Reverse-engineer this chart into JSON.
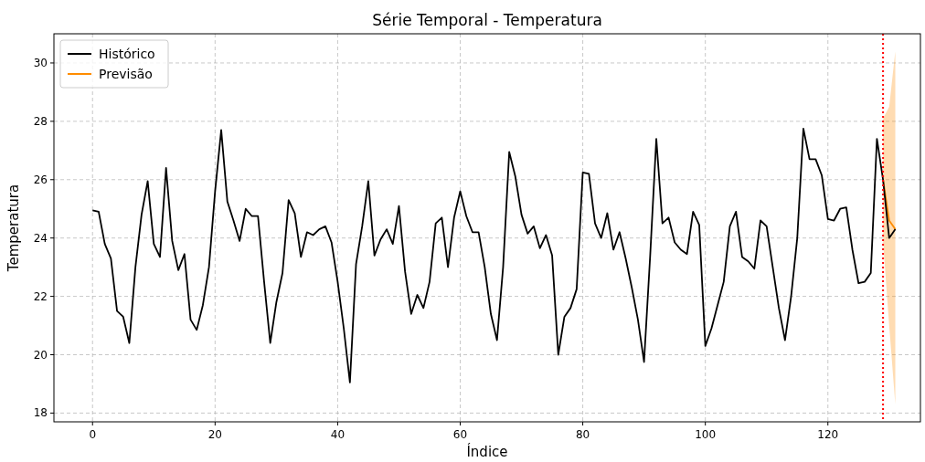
{
  "chart_data": {
    "type": "line",
    "title": "Série Temporal - Temperatura",
    "xlabel": "Índice",
    "ylabel": "Temperatura",
    "xlim": [
      -6.3,
      135.1
    ],
    "xticks": [
      0,
      20,
      40,
      60,
      80,
      100,
      120
    ],
    "ylim": [
      17.7,
      31.0
    ],
    "yticks": [
      18,
      20,
      22,
      24,
      26,
      28,
      30
    ],
    "grid": true,
    "legend": "top left",
    "series": [
      {
        "name": "Histórico",
        "color": "#000000",
        "x": [
          0,
          1,
          2,
          3,
          4,
          5,
          6,
          7,
          8,
          9,
          10,
          11,
          12,
          13,
          14,
          15,
          16,
          17,
          18,
          19,
          20,
          21,
          22,
          23,
          24,
          25,
          26,
          27,
          28,
          29,
          30,
          31,
          32,
          33,
          34,
          35,
          36,
          37,
          38,
          39,
          40,
          41,
          42,
          43,
          44,
          45,
          46,
          47,
          48,
          49,
          50,
          51,
          52,
          53,
          54,
          55,
          56,
          57,
          58,
          59,
          60,
          61,
          62,
          63,
          64,
          65,
          66,
          67,
          68,
          69,
          70,
          71,
          72,
          73,
          74,
          75,
          76,
          77,
          78,
          79,
          80,
          81,
          82,
          83,
          84,
          85,
          86,
          87,
          88,
          89,
          90,
          91,
          92,
          93,
          94,
          95,
          96,
          97,
          98,
          99,
          100,
          101,
          102,
          103,
          104,
          105,
          106,
          107,
          108,
          109,
          110,
          111,
          112,
          113,
          114,
          115,
          116,
          117,
          118,
          119,
          120,
          121,
          122,
          123,
          124,
          125,
          126,
          127,
          128,
          129,
          130,
          131
        ],
        "values": [
          24.95,
          24.9,
          23.8,
          23.3,
          21.5,
          21.3,
          20.4,
          23.0,
          24.8,
          25.95,
          23.8,
          23.35,
          26.4,
          23.9,
          22.9,
          23.45,
          21.2,
          20.85,
          21.7,
          23.0,
          25.6,
          27.7,
          25.25,
          24.6,
          23.9,
          25.0,
          24.75,
          24.75,
          22.5,
          20.4,
          21.8,
          22.8,
          25.3,
          24.85,
          23.35,
          24.2,
          24.1,
          24.3,
          24.4,
          23.85,
          22.5,
          20.9,
          19.05,
          23.1,
          24.4,
          25.95,
          23.4,
          23.95,
          24.3,
          23.8,
          25.1,
          22.85,
          21.4,
          22.05,
          21.6,
          22.5,
          24.5,
          24.7,
          23.0,
          24.7,
          25.6,
          24.75,
          24.2,
          24.2,
          23.0,
          21.4,
          20.5,
          23.0,
          26.95,
          26.1,
          24.8,
          24.15,
          24.4,
          23.65,
          24.1,
          23.4,
          20.0,
          21.3,
          21.6,
          22.25,
          26.25,
          26.2,
          24.5,
          24.0,
          24.85,
          23.6,
          24.2,
          23.3,
          22.3,
          21.2,
          19.75,
          23.4,
          27.4,
          24.5,
          24.7,
          23.85,
          23.6,
          23.45,
          24.9,
          24.45,
          20.3,
          20.9,
          21.7,
          22.5,
          24.4,
          24.9,
          23.35,
          23.2,
          22.95,
          24.6,
          24.4,
          23.0,
          21.6,
          20.5,
          22.0,
          24.0,
          27.75,
          26.7,
          26.7,
          26.15,
          24.65,
          24.6,
          25.0,
          25.05,
          23.6,
          22.45,
          22.5,
          22.8,
          27.4,
          26.0,
          24.0,
          24.3
        ]
      },
      {
        "name": "Previsão",
        "color": "#ff8c00",
        "x": [
          129,
          130,
          131
        ],
        "values": [
          26.0,
          24.6,
          24.3
        ],
        "lower": [
          23.9,
          21.0,
          18.3
        ],
        "upper": [
          28.1,
          28.5,
          30.4
        ]
      }
    ],
    "ref_lines": [
      {
        "axis": "x",
        "value": 129,
        "color": "#ff0000",
        "line_style": "dotted"
      }
    ]
  }
}
